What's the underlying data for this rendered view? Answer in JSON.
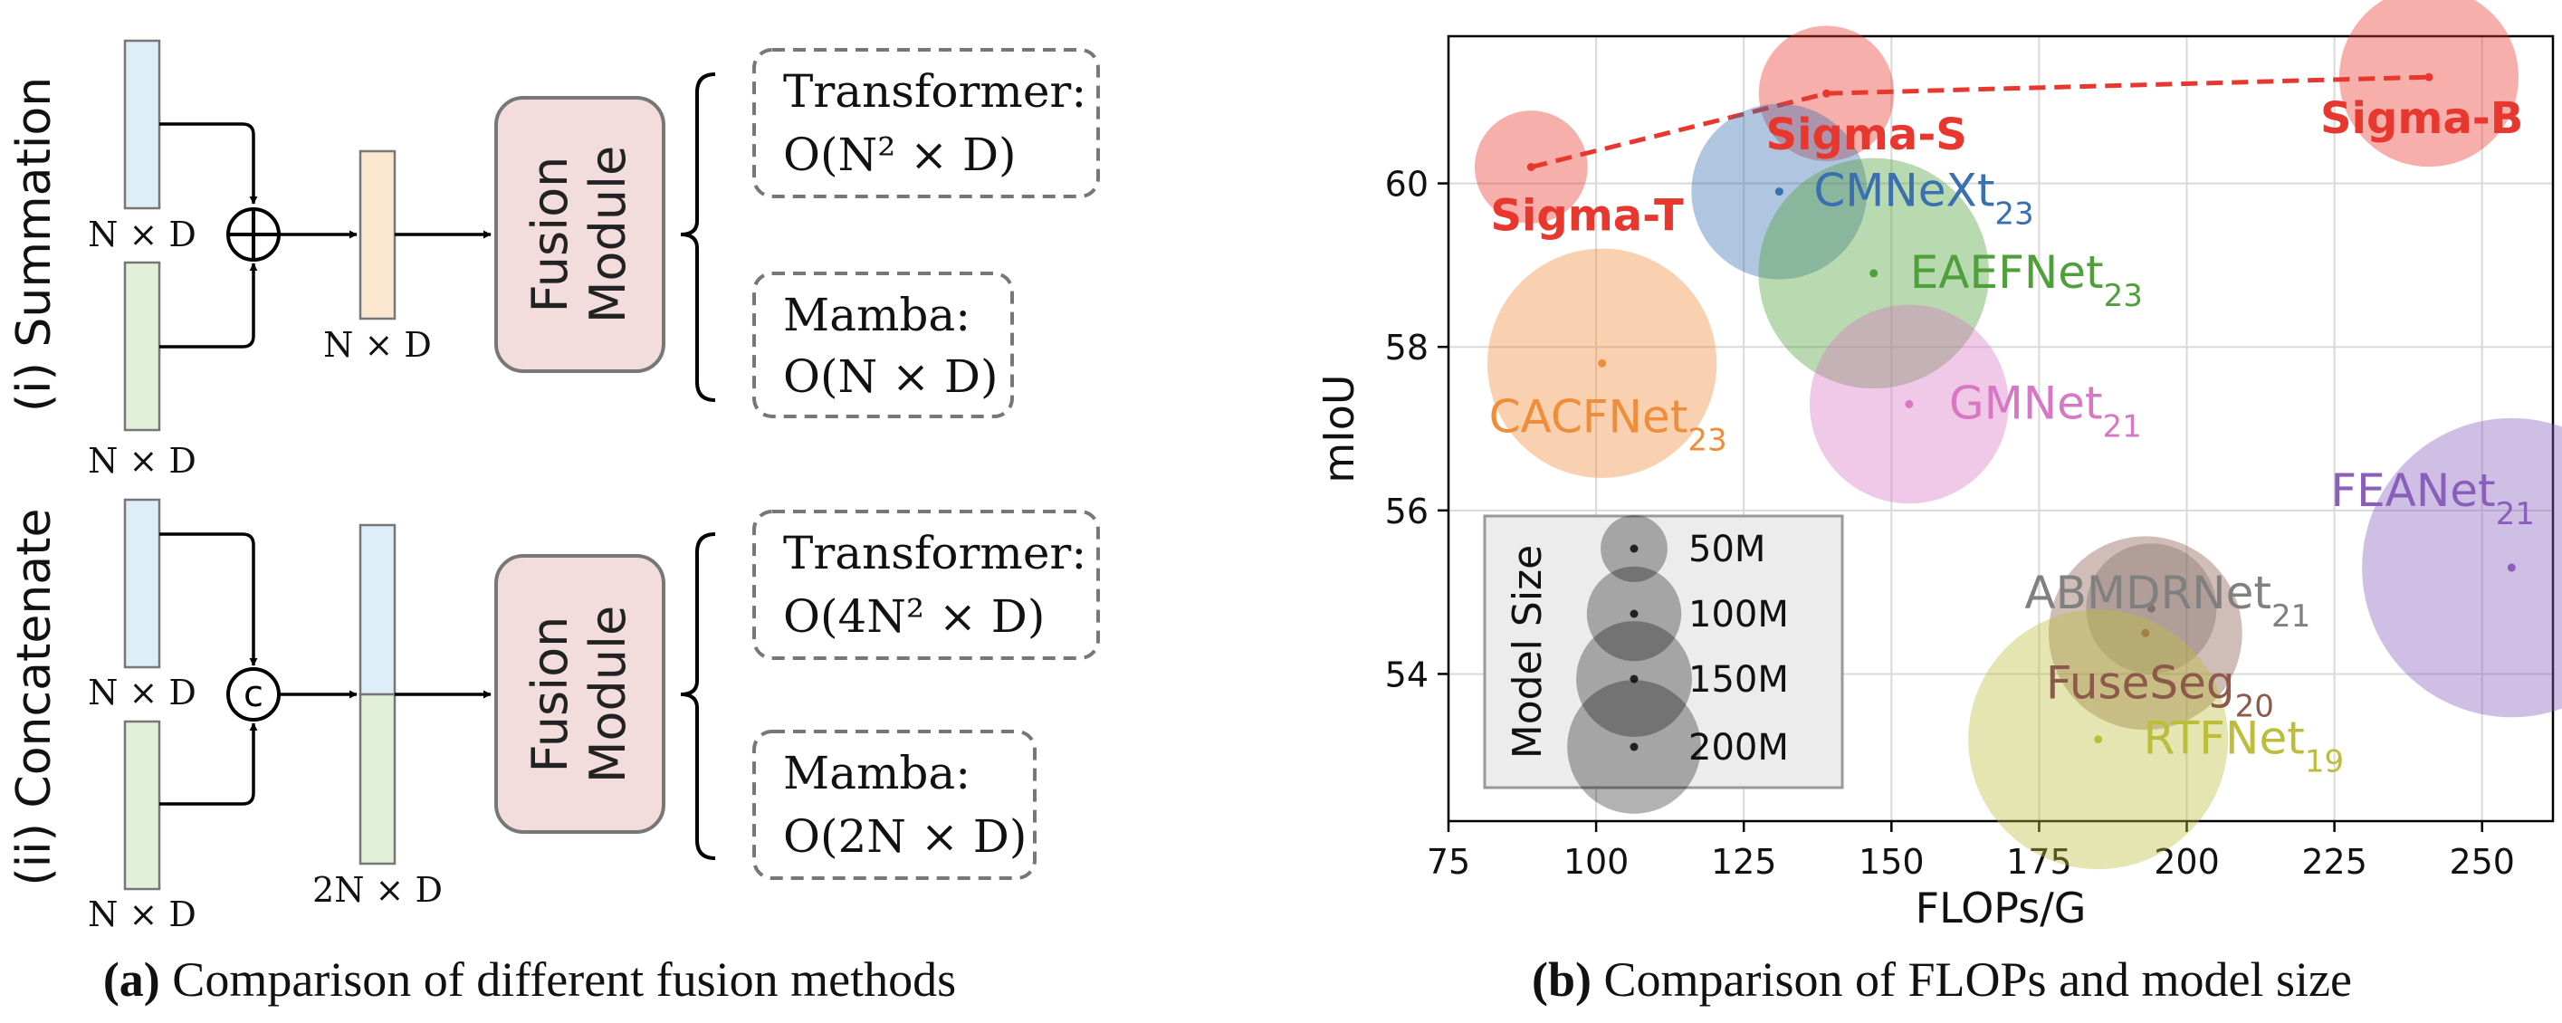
{
  "panel_a": {
    "row1": {
      "label": "(i) Summation",
      "input_top_dim": "N × D",
      "input_bottom_dim": "N × D",
      "operator_symbol": "+",
      "output_dim": "N × D",
      "module_line1": "Fusion",
      "module_line2": "Module",
      "transformer_label": "Transformer:",
      "transformer_complexity": "O(N² × D)",
      "mamba_label": "Mamba:",
      "mamba_complexity": "O(N × D)"
    },
    "row2": {
      "label": "(ii) Concatenate",
      "input_top_dim": "N × D",
      "input_bottom_dim": "N × D",
      "operator_symbol": "c",
      "output_dim": "2N × D",
      "module_line1": "Fusion",
      "module_line2": "Module",
      "transformer_label": "Transformer:",
      "transformer_complexity": "O(4N² × D)",
      "mamba_label": "Mamba:",
      "mamba_complexity": "O(2N × D)"
    },
    "caption_bold": "(a)",
    "caption_text": " Comparison of different fusion methods"
  },
  "panel_b": {
    "caption_bold": "(b)",
    "caption_text": " Comparison of FLOPs and model size"
  },
  "chart_data": {
    "type": "scatter",
    "xlabel": "FLOPs/G",
    "ylabel": "mIoU",
    "xlim": [
      75,
      262
    ],
    "ylim": [
      52.2,
      61.8
    ],
    "xticks": [
      75,
      100,
      125,
      150,
      175,
      200,
      225,
      250
    ],
    "yticks": [
      54,
      56,
      58,
      60
    ],
    "grid": true,
    "points": [
      {
        "name": "Sigma-T",
        "sub": "",
        "x": 89,
        "y": 60.2,
        "params_M": 48,
        "color": "#e8372e",
        "bold": true
      },
      {
        "name": "Sigma-S",
        "sub": "",
        "x": 139,
        "y": 61.1,
        "params_M": 69,
        "color": "#e8372e",
        "bold": true
      },
      {
        "name": "Sigma-B",
        "sub": "",
        "x": 241,
        "y": 61.3,
        "params_M": 121,
        "color": "#e8372e",
        "bold": true
      },
      {
        "name": "CMNeXt",
        "sub": "23",
        "x": 131,
        "y": 59.9,
        "params_M": 116,
        "color": "#3a6fb0",
        "bold": false
      },
      {
        "name": "EAEFNet",
        "sub": "23",
        "x": 147,
        "y": 58.9,
        "params_M": 200,
        "color": "#4fa03a",
        "bold": false
      },
      {
        "name": "CACFNet",
        "sub": "23",
        "x": 101,
        "y": 57.8,
        "params_M": 198,
        "color": "#f08d3a",
        "bold": false
      },
      {
        "name": "GMNet",
        "sub": "21",
        "x": 153,
        "y": 57.3,
        "params_M": 149,
        "color": "#d877c4",
        "bold": false
      },
      {
        "name": "FEANet",
        "sub": "21",
        "x": 255,
        "y": 55.3,
        "params_M": 337,
        "color": "#8a5fbc",
        "bold": false
      },
      {
        "name": "ABMDRNet",
        "sub": "21",
        "x": 194,
        "y": 54.8,
        "params_M": 64,
        "color": "#808080",
        "bold": false
      },
      {
        "name": "FuseSeg",
        "sub": "20",
        "x": 193,
        "y": 54.5,
        "params_M": 141,
        "color": "#8c5a4a",
        "bold": false
      },
      {
        "name": "RTFNet",
        "sub": "19",
        "x": 185,
        "y": 53.2,
        "params_M": 254,
        "color": "#bcbd3a",
        "bold": false
      }
    ],
    "sigma_line": [
      "Sigma-T",
      "Sigma-S",
      "Sigma-B"
    ],
    "sigma_line_color": "#e8372e",
    "legend": {
      "title": "Model Size",
      "placement": "bottom-left",
      "entries": [
        {
          "label": "50M",
          "params_M": 50
        },
        {
          "label": "100M",
          "params_M": 100
        },
        {
          "label": "150M",
          "params_M": 150
        },
        {
          "label": "200M",
          "params_M": 200
        }
      ]
    }
  }
}
